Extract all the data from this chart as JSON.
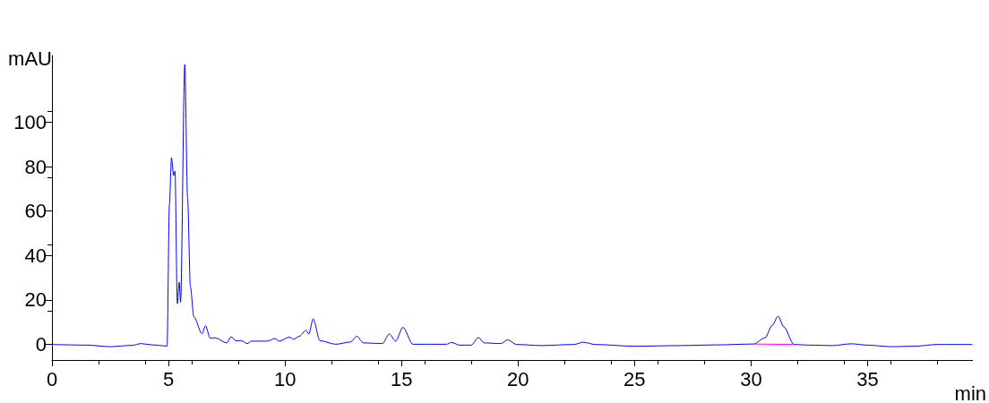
{
  "chart_data": {
    "type": "line",
    "xlabel": "min",
    "ylabel": "mAU",
    "xlim": [
      0,
      39.5
    ],
    "xticks": [
      0,
      5,
      10,
      15,
      20,
      25,
      30,
      35
    ],
    "ylim": [
      -7,
      130
    ],
    "yticks": [
      0,
      20,
      40,
      60,
      80,
      100
    ],
    "grid": false,
    "marker": "none",
    "line_style": "solid",
    "series": [
      {
        "color": "#0000ff",
        "x": [
          0,
          1.5,
          2.5,
          3.45,
          3.82,
          4.3,
          4.94,
          5.04,
          5.13,
          5.22,
          5.28,
          5.38,
          5.46,
          5.52,
          5.7,
          5.82,
          5.94,
          6.09,
          6.44,
          6.59,
          6.79,
          7.0,
          7.5,
          7.69,
          7.88,
          8.13,
          8.38,
          8.57,
          9.25,
          9.56,
          9.75,
          10.19,
          10.37,
          10.62,
          10.9,
          11.02,
          11.21,
          11.5,
          12.18,
          12.81,
          13.08,
          13.37,
          14.18,
          14.47,
          14.75,
          15.06,
          15.49,
          16.93,
          17.14,
          17.49,
          17.99,
          18.3,
          18.55,
          19.27,
          19.55,
          19.93,
          21,
          22.4,
          22.8,
          23.3,
          25,
          27,
          28.5,
          30.1,
          30.6,
          30.9,
          31.16,
          31.4,
          31.84,
          32.5,
          33.5,
          34.3,
          35,
          36,
          37,
          38,
          39.5
        ],
        "values": [
          0,
          -0.3,
          -1,
          -0.4,
          0.4,
          -0.2,
          -0.7,
          63,
          84,
          76,
          78,
          18.4,
          28,
          19,
          126,
          66,
          26,
          12.4,
          4.8,
          8.4,
          2.8,
          3,
          0.7,
          3.5,
          1.7,
          1.7,
          0.4,
          1.5,
          1.5,
          2.7,
          1.5,
          3.3,
          2.4,
          3.7,
          6.4,
          4.7,
          11.5,
          1.7,
          0.1,
          1.1,
          3.7,
          0.7,
          0.4,
          4.7,
          1.5,
          7.7,
          0.1,
          0.1,
          0.9,
          -0.3,
          -0.3,
          3.1,
          0.7,
          0.4,
          2.1,
          0,
          -0.5,
          0,
          1,
          0,
          -0.8,
          -0.5,
          -0.2,
          0.2,
          3,
          8.5,
          12.7,
          8,
          0,
          -0.3,
          -0.5,
          0.3,
          -0.3,
          -1,
          -0.8,
          0,
          0
        ]
      },
      {
        "type": "line",
        "color": "#ff00ff",
        "x": [
          30.1,
          31.84
        ],
        "values": [
          0.2,
          0
        ]
      }
    ]
  }
}
